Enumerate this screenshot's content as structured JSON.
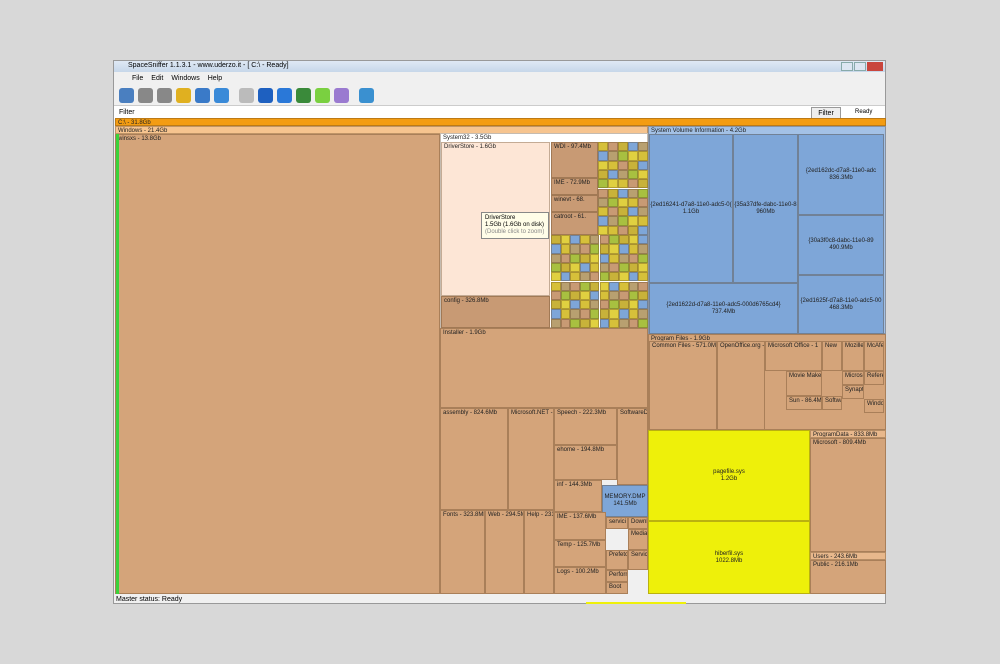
{
  "window": {
    "title": "SpaceSniffer 1.1.3.1 - www.uderzo.it - [ C:\\ - Ready]",
    "menu": [
      "File",
      "Edit",
      "Windows",
      "Help"
    ],
    "filter_label": "Filter",
    "filter_button": "Filter",
    "state": "Ready",
    "status": "Master status: Ready"
  },
  "treemap": {
    "cells": [
      {
        "label": "C:\\ - 31.8Gb"
      },
      {
        "label": "Windows - 21.4Gb"
      },
      {
        "label": "winsxs - 13.8Gb"
      },
      {
        "label": "System32 - 3.5Gb"
      },
      {
        "label": "DriverStore - 1.6Gb"
      },
      {
        "label": "config - 326.8Mb"
      },
      {
        "label": "WDI - 97.4Mb"
      },
      {
        "label": "IME - 72.9Mb"
      },
      {
        "label": "winevt - 68."
      },
      {
        "label": "catroot - 61."
      },
      {
        "label": "System Volume Information - 4.2Gb"
      },
      {
        "label": "{2ed16241-d7a8-11e0-adc5-0(",
        "detail": "1.1Gb"
      },
      {
        "label": "{35a37dfe-dabc-11e0-8",
        "detail": "960Mb"
      },
      {
        "label": "{2ed162dc-d7a8-11e0-adc",
        "detail": "836.3Mb"
      },
      {
        "label": "{30a3f0c8-dabc-11e0-89",
        "detail": "490.9Mb"
      },
      {
        "label": "{2ed1622d-d7a8-11e0-adc5-000d6765cd4}",
        "detail": "737.4Mb"
      },
      {
        "label": "{2ed1625f-d7a8-11e0-adc5-00",
        "detail": "468.3Mb"
      },
      {
        "label": "Installer - 1.9Gb"
      },
      {
        "label": "assembly - 824.6Mb"
      },
      {
        "label": "Microsoft.NET - 4"
      },
      {
        "label": "Speech - 222.3Mb"
      },
      {
        "label": "SoftwareD"
      },
      {
        "label": "ehome - 194.8Mb"
      },
      {
        "label": "inf - 144.3Mb"
      },
      {
        "label": "MEMORY.DMP",
        "detail": "141.5Mb"
      },
      {
        "label": "Fonts - 323.8Mb"
      },
      {
        "label": "Web - 294.5Mb"
      },
      {
        "label": "Help - 231."
      },
      {
        "label": "IME - 137.6Mb"
      },
      {
        "label": "Temp - 125.7Mb"
      },
      {
        "label": "Logs - 100.2Mb"
      },
      {
        "label": "servici"
      },
      {
        "label": "Downl"
      },
      {
        "label": "Media"
      },
      {
        "label": "Prefetch"
      },
      {
        "label": "Servic"
      },
      {
        "label": "Perform"
      },
      {
        "label": "Boot"
      },
      {
        "label": "Program Files - 1.9Gb"
      },
      {
        "label": "Common Files - 571.0Mb"
      },
      {
        "label": "OpenOffice.org -"
      },
      {
        "label": "Microsoft Office - 1"
      },
      {
        "label": "New"
      },
      {
        "label": "Mozille"
      },
      {
        "label": "McAfe"
      },
      {
        "label": "Movie Maker -"
      },
      {
        "label": "Sun - 86.4Mb"
      },
      {
        "label": "Softwa"
      },
      {
        "label": "Microsc"
      },
      {
        "label": "Refere"
      },
      {
        "label": "Synaptic"
      },
      {
        "label": "Windo"
      },
      {
        "label": "pagefile.sys",
        "detail": "1.2Gb"
      },
      {
        "label": "hiberfil.sys",
        "detail": "1022.8Mb"
      },
      {
        "label": "ProgramData - 833.8Mb"
      },
      {
        "label": "Microsoft - 809.4Mb"
      },
      {
        "label": "Users - 243.6Mb"
      },
      {
        "label": "Public - 216.1Mb"
      }
    ]
  },
  "tooltip": {
    "title": "DriverStore",
    "size": "1.5Gb (1.6Gb on disk)",
    "hint": "(Double click to zoom)"
  }
}
